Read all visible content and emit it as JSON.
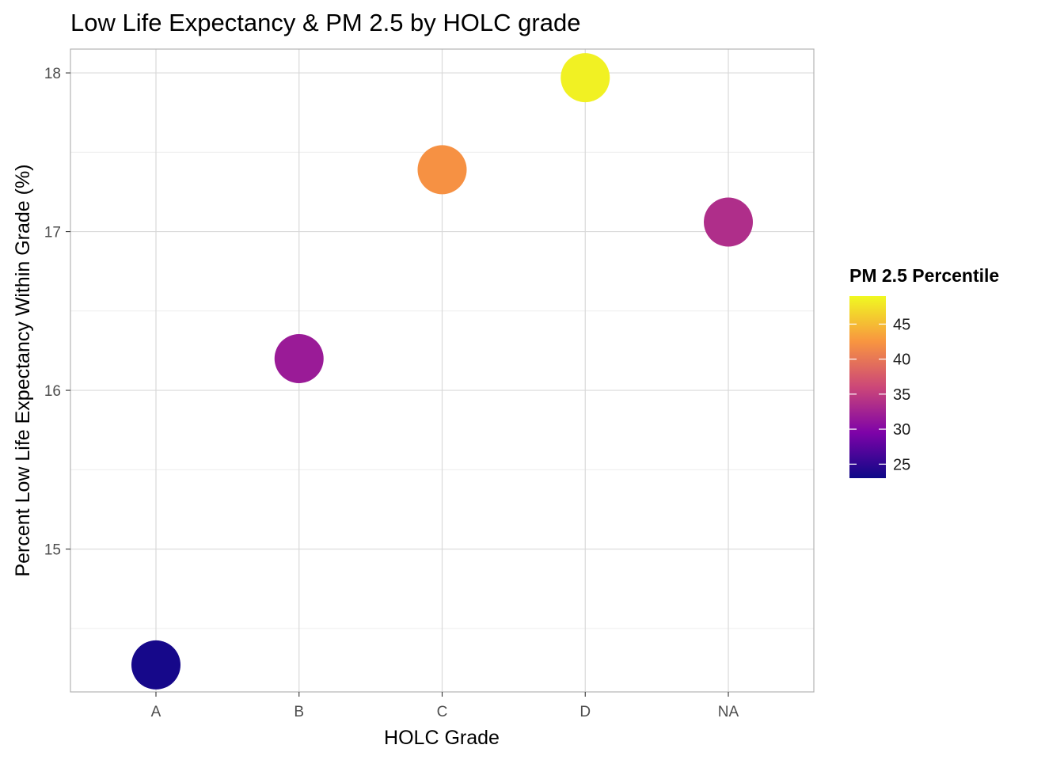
{
  "chart_data": {
    "type": "scatter",
    "title": "Low Life Expectancy & PM 2.5 by HOLC grade",
    "xlabel": "HOLC Grade",
    "ylabel": "Percent Low Life Expectancy Within Grade (%)",
    "categories": [
      "A",
      "B",
      "C",
      "D",
      "NA"
    ],
    "values": [
      14.27,
      16.2,
      17.39,
      17.97,
      17.06
    ],
    "color_values": [
      23.5,
      31.8,
      42.2,
      48.5,
      33.6
    ],
    "ylim": [
      14.1,
      18.15
    ],
    "yticks": [
      15,
      16,
      17,
      18
    ],
    "grid": true,
    "legend": {
      "title": "PM 2.5 Percentile",
      "position": "right",
      "range": [
        23,
        49
      ],
      "ticks": [
        25,
        30,
        35,
        40,
        45
      ]
    },
    "colormap": "plasma"
  }
}
